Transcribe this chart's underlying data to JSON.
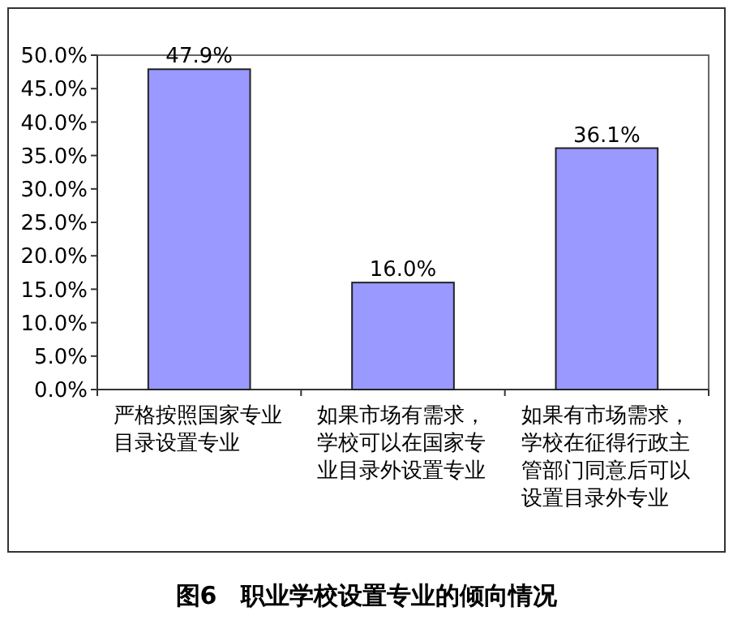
{
  "chart_data": {
    "type": "bar",
    "title": "图6　职业学校设置专业的倾向情况",
    "categories": [
      "严格按照国家专业目录设置专业",
      "如果市场有需求，学校可以在国家专业目录外设置专业",
      "如果有市场需求，学校在征得行政主管部门同意后可以设置目录外专业"
    ],
    "values": [
      47.9,
      16.0,
      36.1
    ],
    "value_labels": [
      "47.9%",
      "16.0%",
      "36.1%"
    ],
    "color": "#9999ff",
    "ylim": [
      0,
      50
    ],
    "yticks": [
      {
        "value": 0,
        "label": "0.0%"
      },
      {
        "value": 5,
        "label": "5.0%"
      },
      {
        "value": 10,
        "label": "10.0%"
      },
      {
        "value": 15,
        "label": "15.0%"
      },
      {
        "value": 20,
        "label": "20.0%"
      },
      {
        "value": 25,
        "label": "25.0%"
      },
      {
        "value": 30,
        "label": "30.0%"
      },
      {
        "value": 35,
        "label": "35.0%"
      },
      {
        "value": 40,
        "label": "40.0%"
      },
      {
        "value": 45,
        "label": "45.0%"
      },
      {
        "value": 50,
        "label": "50.0%"
      }
    ],
    "grid": false
  }
}
